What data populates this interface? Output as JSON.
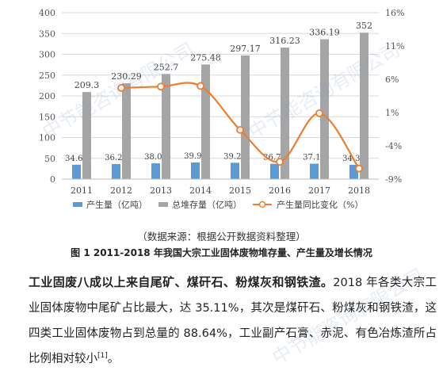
{
  "chart_data": {
    "type": "bar",
    "categories": [
      "2011",
      "2012",
      "2013",
      "2014",
      "2015",
      "2016",
      "2017",
      "2018"
    ],
    "series": [
      {
        "name": "产生量（亿吨）",
        "kind": "bar",
        "color": "#5b9bd5",
        "values": [
          34.65,
          36.27,
          38.04,
          39.93,
          39.28,
          36.78,
          37.12,
          34.39
        ]
      },
      {
        "name": "总堆存量（亿吨）",
        "kind": "bar",
        "color": "#a5a5a5",
        "values": [
          209.3,
          230.29,
          252.7,
          275.48,
          297.17,
          316.23,
          336.19,
          352
        ]
      },
      {
        "name": "产生量同比变化（%）",
        "kind": "line",
        "axis": "right",
        "color": "#ed7d31",
        "values": [
          null,
          4.7,
          4.9,
          5.0,
          -1.6,
          -6.4,
          0.9,
          -7.4
        ]
      }
    ],
    "data_labels": {
      "series_0": [
        "34.65",
        "36.27",
        "38.04",
        "39.93",
        "39.28",
        "36.78",
        "37.12",
        "34.39"
      ],
      "series_1": [
        "209.3",
        "230.29",
        "252.7",
        "275.48",
        "297.17",
        "316.23",
        "336.19",
        "352"
      ]
    },
    "y_left": {
      "min": 0,
      "max": 400,
      "ticks": [
        "0",
        "50",
        "100",
        "150",
        "200",
        "250",
        "300",
        "350",
        "400"
      ]
    },
    "y_right": {
      "min": -9,
      "max": 16,
      "ticks": [
        "-9%",
        "-4%",
        "1%",
        "6%",
        "11%",
        "16%"
      ]
    },
    "grid": true,
    "legend_position": "bottom"
  },
  "source_note": "（数据来源：根据公开数据资料整理）",
  "caption": "图 1 2011-2018 年我国大宗工业固体废物堆存量、产生量及增长情况",
  "paragraph": {
    "lead": "工业固废八成以上来自尾矿、煤矸石、粉煤灰和钢铁渣。",
    "text": "2018 年各类大宗工业固体废物中尾矿占比最大，达 35.11%，其次是煤矸石、粉煤灰和钢铁渣，这四类工业固体废物占到总量的 88.64%，工业副产石膏、赤泥、有色冶炼渣所占比例相对较小",
    "ref": "[1]",
    "end": "。"
  },
  "watermark": "中节能咨询有限公司"
}
